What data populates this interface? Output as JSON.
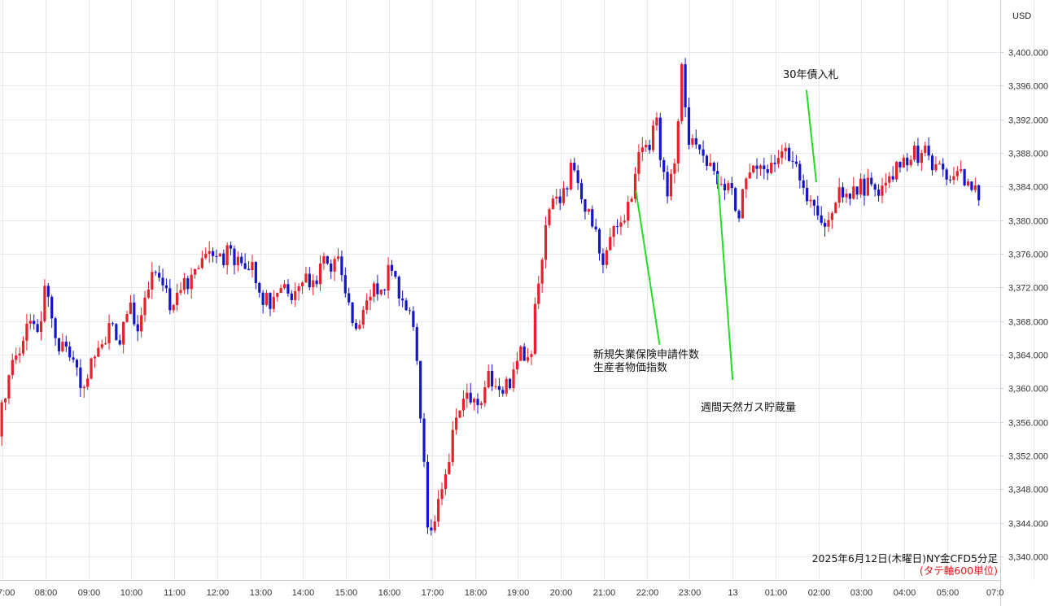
{
  "chart_data": {
    "type": "candlestick",
    "currency": "USD",
    "caption": "2025年6月12日(木曜日)NY金CFD5分足",
    "caption_note": "(タテ軸600単位)",
    "ylim": [
      3337,
      3406
    ],
    "yticks": [
      3340,
      3344,
      3348,
      3352,
      3356,
      3360,
      3364,
      3368,
      3372,
      3376,
      3380,
      3384,
      3388,
      3392,
      3396,
      3400
    ],
    "ytick_labels": [
      "3,340.000",
      "3,344.000",
      "3,348.000",
      "3,352.000",
      "3,356.000",
      "3,360.000",
      "3,364.000",
      "3,368.000",
      "3,372.000",
      "3,376.000",
      "3,380.000",
      "3,384.000",
      "3,388.000",
      "3,392.000",
      "3,396.000",
      "3,400.000"
    ],
    "xtick_labels": [
      "7:00",
      "08:00",
      "09:00",
      "10:00",
      "11:00",
      "12:00",
      "13:00",
      "14:00",
      "15:00",
      "16:00",
      "17:00",
      "18:00",
      "19:00",
      "20:00",
      "21:00",
      "22:00",
      "23:00",
      "13",
      "01:00",
      "02:00",
      "03:00",
      "04:00",
      "05:00",
      "07:0"
    ],
    "xtick_hours": [
      7,
      8,
      9,
      10,
      11,
      12,
      13,
      14,
      15,
      16,
      17,
      18,
      19,
      20,
      21,
      22,
      23,
      24,
      25,
      26,
      27,
      28,
      29,
      31
    ],
    "keypoints": [
      [
        6.9,
        3353
      ],
      [
        7.1,
        3358
      ],
      [
        7.3,
        3362
      ],
      [
        7.5,
        3365
      ],
      [
        7.7,
        3368
      ],
      [
        7.9,
        3366
      ],
      [
        8.1,
        3372
      ],
      [
        8.3,
        3366
      ],
      [
        8.5,
        3365
      ],
      [
        8.8,
        3364
      ],
      [
        8.95,
        3358
      ],
      [
        9.1,
        3363
      ],
      [
        9.4,
        3365
      ],
      [
        9.6,
        3368
      ],
      [
        9.8,
        3366
      ],
      [
        10.0,
        3370
      ],
      [
        10.2,
        3367
      ],
      [
        10.4,
        3370
      ],
      [
        10.6,
        3375
      ],
      [
        10.8,
        3372
      ],
      [
        11.0,
        3370
      ],
      [
        11.2,
        3371
      ],
      [
        11.4,
        3373
      ],
      [
        11.6,
        3375
      ],
      [
        11.8,
        3377
      ],
      [
        12.0,
        3375
      ],
      [
        12.3,
        3376
      ],
      [
        12.6,
        3375
      ],
      [
        12.9,
        3374
      ],
      [
        13.1,
        3371
      ],
      [
        13.3,
        3370
      ],
      [
        13.6,
        3372
      ],
      [
        13.9,
        3371
      ],
      [
        14.1,
        3374
      ],
      [
        14.3,
        3372
      ],
      [
        14.6,
        3375
      ],
      [
        14.9,
        3375
      ],
      [
        15.1,
        3372
      ],
      [
        15.3,
        3367
      ],
      [
        15.5,
        3370
      ],
      [
        15.7,
        3372
      ],
      [
        15.9,
        3371
      ],
      [
        16.1,
        3375
      ],
      [
        16.3,
        3372
      ],
      [
        16.5,
        3369
      ],
      [
        16.65,
        3368
      ],
      [
        16.78,
        3360
      ],
      [
        16.9,
        3352
      ],
      [
        17.0,
        3342
      ],
      [
        17.2,
        3346
      ],
      [
        17.4,
        3350
      ],
      [
        17.6,
        3355
      ],
      [
        17.8,
        3359
      ],
      [
        18.0,
        3358
      ],
      [
        18.2,
        3357
      ],
      [
        18.4,
        3361
      ],
      [
        18.6,
        3361
      ],
      [
        18.8,
        3360
      ],
      [
        19.0,
        3362
      ],
      [
        19.2,
        3365
      ],
      [
        19.35,
        3362
      ],
      [
        19.5,
        3370
      ],
      [
        19.7,
        3378
      ],
      [
        19.9,
        3382
      ],
      [
        20.1,
        3382
      ],
      [
        20.3,
        3386
      ],
      [
        20.5,
        3384
      ],
      [
        20.7,
        3381
      ],
      [
        20.9,
        3380
      ],
      [
        21.0,
        3374
      ],
      [
        21.2,
        3377
      ],
      [
        21.4,
        3379
      ],
      [
        21.6,
        3381
      ],
      [
        21.75,
        3383
      ],
      [
        21.9,
        3389
      ],
      [
        22.1,
        3388
      ],
      [
        22.3,
        3392
      ],
      [
        22.45,
        3385
      ],
      [
        22.6,
        3383
      ],
      [
        22.75,
        3388
      ],
      [
        22.9,
        3398
      ],
      [
        23.05,
        3390
      ],
      [
        23.2,
        3390
      ],
      [
        23.4,
        3387
      ],
      [
        23.6,
        3386
      ],
      [
        23.8,
        3384
      ],
      [
        24.0,
        3385
      ],
      [
        24.2,
        3380
      ],
      [
        24.4,
        3386
      ],
      [
        24.6,
        3387
      ],
      [
        24.8,
        3386
      ],
      [
        25.0,
        3386
      ],
      [
        25.2,
        3387
      ],
      [
        25.4,
        3388
      ],
      [
        25.55,
        3386
      ],
      [
        25.7,
        3384
      ],
      [
        25.9,
        3382
      ],
      [
        26.1,
        3381
      ],
      [
        26.3,
        3380
      ],
      [
        26.5,
        3383
      ],
      [
        26.7,
        3384
      ],
      [
        26.9,
        3383
      ],
      [
        27.1,
        3384
      ],
      [
        27.3,
        3384
      ],
      [
        27.5,
        3384
      ],
      [
        27.7,
        3385
      ],
      [
        27.9,
        3386
      ],
      [
        28.1,
        3387
      ],
      [
        28.3,
        3388
      ],
      [
        28.5,
        3388
      ],
      [
        28.7,
        3387
      ],
      [
        28.9,
        3386
      ],
      [
        29.1,
        3385
      ],
      [
        29.3,
        3386
      ],
      [
        29.5,
        3385
      ],
      [
        29.65,
        3384
      ],
      [
        29.8,
        3383
      ]
    ],
    "annotations": [
      {
        "lines": [
          "新規失業保険申請件数",
          "生産者物価指数"
        ],
        "target_time": 21.75,
        "target_price": 3383.5,
        "anchor_time": 22.3,
        "anchor_price": 3365.2
      },
      {
        "lines": [
          "週間天然ガス貯蔵量"
        ],
        "target_time": 23.65,
        "target_price": 3385.5,
        "anchor_time": 24.0,
        "anchor_price": 3361.0
      },
      {
        "lines": [
          "30年債入札"
        ],
        "target_time": 25.95,
        "target_price": 3384.5,
        "anchor_time": 25.72,
        "anchor_price": 3395.5
      }
    ],
    "colors": {
      "up": "#e8202a",
      "down": "#1515c8",
      "annotation_line": "#22dd22",
      "grid": "#e6eaf0",
      "caption_note": "#e01818"
    }
  }
}
